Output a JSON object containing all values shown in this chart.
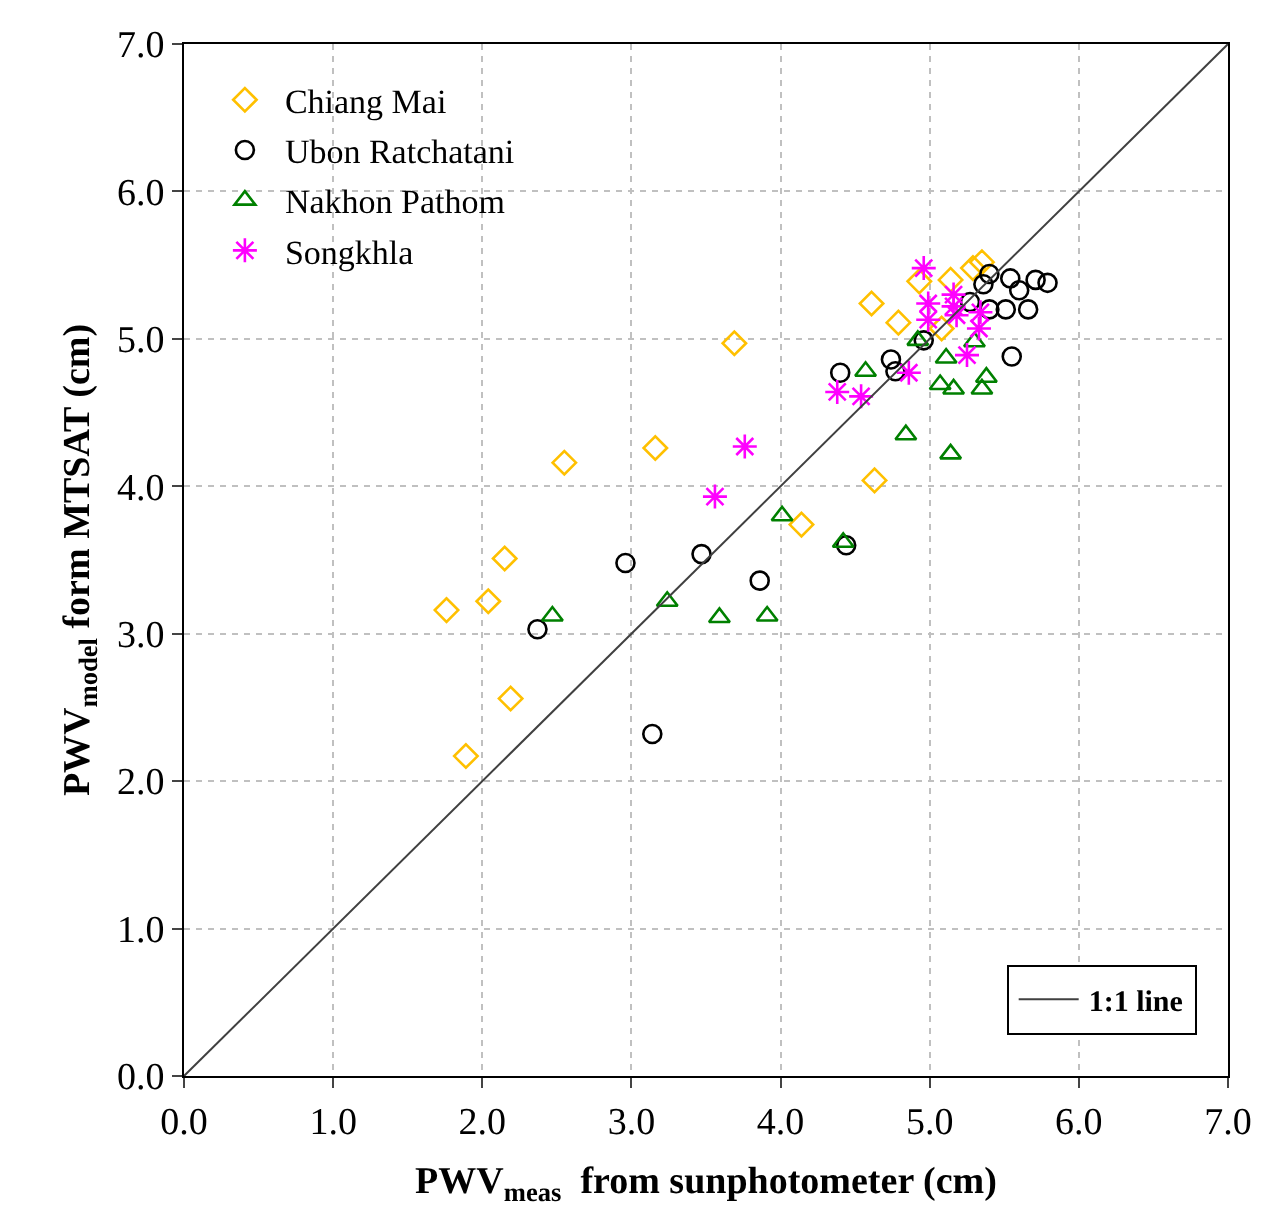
{
  "chart_data": {
    "type": "scatter",
    "xlabel": "PWV$_{meas}$  from sunphotometer (cm)",
    "ylabel": "PWV$_{model}$ form MTSAT (cm)",
    "xlim": [
      0,
      7
    ],
    "ylim": [
      0,
      7
    ],
    "xticks": [
      {
        "value": 0,
        "label": "0.0"
      },
      {
        "value": 1,
        "label": "1.0"
      },
      {
        "value": 2,
        "label": "2.0"
      },
      {
        "value": 3,
        "label": "3.0"
      },
      {
        "value": 4,
        "label": "4.0"
      },
      {
        "value": 5,
        "label": "5.0"
      },
      {
        "value": 6,
        "label": "6.0"
      },
      {
        "value": 7,
        "label": "7.0"
      }
    ],
    "yticks": [
      {
        "value": 0,
        "label": "0.0"
      },
      {
        "value": 1,
        "label": "1.0"
      },
      {
        "value": 2,
        "label": "2.0"
      },
      {
        "value": 3,
        "label": "3.0"
      },
      {
        "value": 4,
        "label": "4.0"
      },
      {
        "value": 5,
        "label": "5.0"
      },
      {
        "value": 6,
        "label": "6.0"
      },
      {
        "value": 7,
        "label": "7.0"
      }
    ],
    "grid": true,
    "legend": "top left",
    "series": [
      {
        "name": "Chiang Mai",
        "color": "#ffc000",
        "marker": "diamond",
        "x": [
          1.76,
          2.04,
          2.15,
          2.19,
          1.89,
          2.55,
          3.16,
          3.69,
          4.14,
          4.63,
          4.61,
          4.79,
          4.93,
          5.14,
          5.08,
          5.29,
          5.35
        ],
        "values": [
          3.16,
          3.22,
          3.51,
          2.56,
          2.17,
          4.16,
          4.26,
          4.97,
          3.74,
          4.04,
          5.24,
          5.11,
          5.39,
          5.4,
          5.07,
          5.48,
          5.52
        ]
      },
      {
        "name": "Ubon Ratchatani",
        "color": "#000000",
        "marker": "circle",
        "x": [
          2.37,
          2.96,
          3.47,
          3.86,
          3.14,
          4.44,
          4.4,
          4.74,
          4.77,
          4.96,
          5.27,
          5.36,
          5.4,
          5.4,
          5.51,
          5.54,
          5.6,
          5.66,
          5.71,
          5.79,
          5.55
        ],
        "values": [
          3.03,
          3.48,
          3.54,
          3.36,
          2.32,
          3.6,
          4.77,
          4.86,
          4.78,
          4.99,
          5.25,
          5.37,
          5.44,
          5.2,
          5.2,
          5.41,
          5.33,
          5.2,
          5.4,
          5.38,
          4.88
        ]
      },
      {
        "name": "Nakhon Pathom",
        "color": "#008000",
        "marker": "triangle",
        "x": [
          2.47,
          3.24,
          3.59,
          3.91,
          4.01,
          4.42,
          4.57,
          4.84,
          5.14,
          4.92,
          5.11,
          5.07,
          5.16,
          5.35,
          5.38,
          5.3
        ],
        "values": [
          3.12,
          3.22,
          3.11,
          3.12,
          3.8,
          3.62,
          4.78,
          4.35,
          4.22,
          4.99,
          4.87,
          4.69,
          4.66,
          4.66,
          4.74,
          4.98
        ]
      },
      {
        "name": "Songkhla",
        "color": "#ff00ff",
        "marker": "cross",
        "x": [
          3.76,
          3.56,
          4.38,
          4.54,
          4.86,
          4.96,
          4.99,
          4.99,
          5.16,
          5.16,
          5.18,
          5.34,
          5.33,
          5.25
        ],
        "values": [
          4.27,
          3.93,
          4.64,
          4.61,
          4.77,
          5.48,
          5.24,
          5.13,
          5.3,
          5.22,
          5.16,
          5.18,
          5.07,
          4.89
        ]
      },
      {
        "name": "1:1 line",
        "type": "line",
        "color": "#404040",
        "x": [
          0,
          7
        ],
        "values": [
          0,
          7
        ]
      }
    ]
  }
}
